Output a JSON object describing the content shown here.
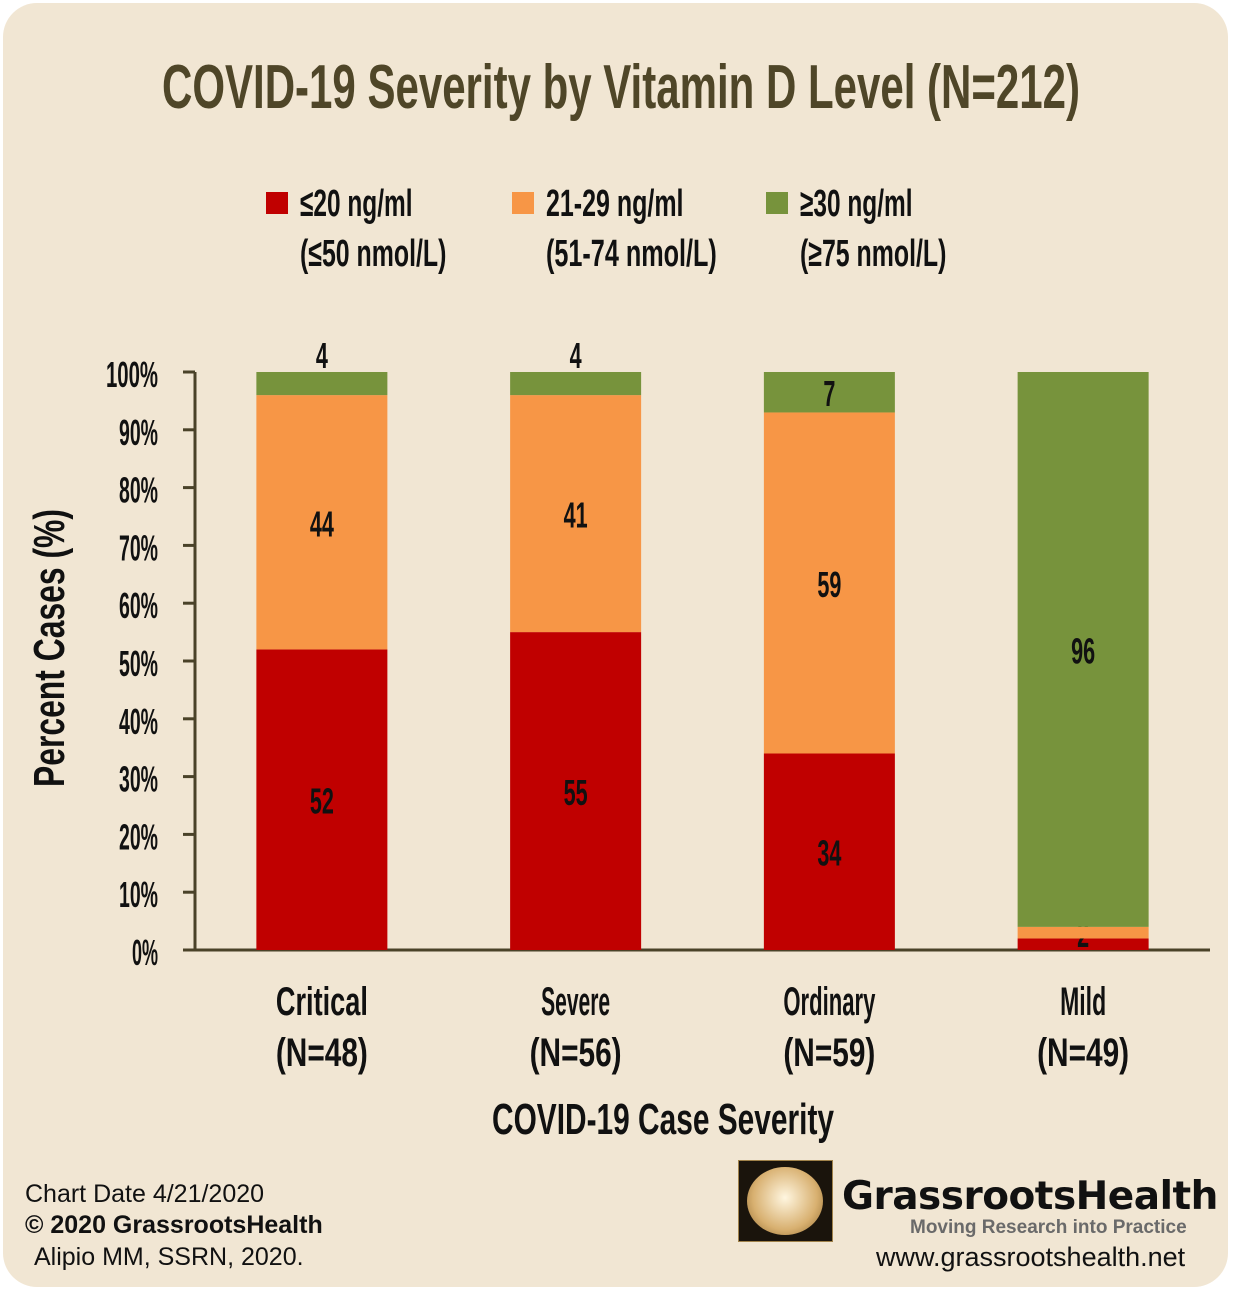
{
  "chart_data": {
    "type": "bar",
    "stacked": true,
    "title": "COVID-19 Severity by Vitamin D Level (N=212)",
    "xlabel": "COVID-19 Case Severity",
    "ylabel": "Percent Cases (%)",
    "ylim": [
      0,
      100
    ],
    "yticks": [
      "0%",
      "10%",
      "20%",
      "30%",
      "40%",
      "50%",
      "60%",
      "70%",
      "80%",
      "90%",
      "100%"
    ],
    "grid": false,
    "legend_position": "top",
    "categories": [
      {
        "name": "Critical",
        "n": "(N=48)"
      },
      {
        "name": "Severe",
        "n": "(N=56)"
      },
      {
        "name": "Ordinary",
        "n": "(N=59)"
      },
      {
        "name": "Mild",
        "n": "(N=49)"
      }
    ],
    "series": [
      {
        "name": "≤20 ng/ml",
        "name2": "(≤50 nmol/L)",
        "color": "#C00000",
        "values": [
          52,
          55,
          34,
          2
        ],
        "labels": [
          "52",
          "55",
          "34",
          "2"
        ]
      },
      {
        "name": "21-29 ng/ml",
        "name2": "(51-74 nmol/L)",
        "color": "#F79646",
        "values": [
          44,
          41,
          59,
          2
        ],
        "labels": [
          "44",
          "41",
          "59",
          ""
        ]
      },
      {
        "name": "≥30 ng/ml",
        "name2": "(≥75 nmol/L)",
        "color": "#77933C",
        "values": [
          4,
          4,
          7,
          96
        ],
        "labels": [
          "4",
          "4",
          "7",
          "96"
        ]
      }
    ]
  },
  "footer": {
    "chart_date": "Chart Date 4/21/2020",
    "copyright": "© 2020 GrassrootsHealth",
    "citation": "Alipio MM, SSRN, 2020.",
    "brand": "GrassrootsHealth",
    "tagline": "Moving Research into Practice",
    "url": "www.grassrootshealth.net"
  },
  "colors": {
    "background": "#F1E6D3",
    "title": "#4F4628",
    "axis": "#4A4228"
  }
}
